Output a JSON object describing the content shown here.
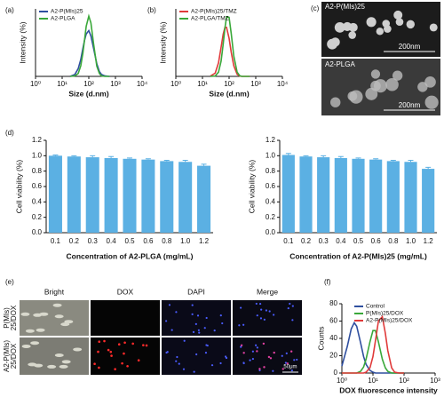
{
  "chart_data": [
    {
      "type": "line",
      "panel": "(a)",
      "x_label": "Size (d.nm)",
      "y_label": "Intensity (%)",
      "log_x": true,
      "legend": "upper left",
      "xlim": [
        1,
        10000
      ],
      "ylim": [
        0,
        14
      ],
      "xticks": [
        {
          "value": 1,
          "label": "10⁰"
        },
        {
          "value": 10,
          "label": "10¹"
        },
        {
          "value": 100,
          "label": "10²"
        },
        {
          "value": 1000,
          "label": "10³"
        },
        {
          "value": 10000,
          "label": "10⁴"
        }
      ],
      "x": [
        20,
        30,
        40,
        50,
        60,
        70,
        80,
        100,
        120,
        150,
        200,
        250,
        300,
        400,
        600
      ],
      "series": [
        {
          "name": "A2-P(MIs)25",
          "color": "#2f4f9f",
          "values": [
            0,
            0.4,
            1.6,
            3.5,
            5.8,
            7.6,
            8.8,
            9.5,
            8.4,
            5.9,
            2.6,
            1.0,
            0.4,
            0.1,
            0
          ]
        },
        {
          "name": "A2-PLGA",
          "color": "#3aa83a",
          "values": [
            0,
            0.1,
            0.6,
            2.2,
            4.8,
            7.8,
            10.4,
            12.5,
            11.1,
            6.9,
            2.1,
            0.6,
            0.1,
            0,
            0
          ]
        }
      ]
    },
    {
      "type": "line",
      "panel": "(b)",
      "x_label": "Size (d.nm)",
      "y_label": "Intensity (%)",
      "log_x": true,
      "legend": "upper left",
      "xlim": [
        1,
        10000
      ],
      "ylim": [
        0,
        19
      ],
      "xticks": [
        {
          "value": 1,
          "label": "10⁰"
        },
        {
          "value": 10,
          "label": "10¹"
        },
        {
          "value": 100,
          "label": "10²"
        },
        {
          "value": 1000,
          "label": "10³"
        },
        {
          "value": 10000,
          "label": "10⁴"
        }
      ],
      "x": [
        20,
        30,
        40,
        50,
        60,
        70,
        80,
        100,
        120,
        150,
        200,
        250,
        300,
        400,
        600
      ],
      "series": [
        {
          "name": "A2-P(MIs)25/TMZ",
          "color": "#e03a3a",
          "values": [
            0.1,
            0.9,
            3.8,
            8.2,
            11.9,
            13.8,
            13.8,
            10.7,
            6.8,
            3.0,
            0.6,
            0.1,
            0,
            0,
            0
          ]
        },
        {
          "name": "A2-PLGA/TMZ",
          "color": "#3aa83a",
          "values": [
            0,
            0.1,
            1.2,
            4.3,
            9.1,
            13.7,
            16.7,
            16.6,
            12.1,
            5.7,
            1.2,
            0.2,
            0,
            0,
            0
          ]
        }
      ]
    },
    {
      "type": "bar",
      "panel": "(d)",
      "x_label": "Concentration of  A2-PLGA (mg/mL)",
      "y_label": "Cell viability (%)",
      "color": "#5bb0e3",
      "categories": [
        "0.1",
        "0.2",
        "0.3",
        "0.4",
        "0.5",
        "0.6",
        "0.8",
        "1.0",
        "1.2"
      ],
      "values": [
        1.0,
        0.99,
        0.98,
        0.97,
        0.96,
        0.95,
        0.93,
        0.92,
        0.87
      ],
      "errors": [
        0.01,
        0.01,
        0.02,
        0.02,
        0.01,
        0.01,
        0.01,
        0.02,
        0.02
      ],
      "ylim": [
        0,
        1.2
      ],
      "yticks": [
        {
          "value": 0,
          "label": "0.0"
        },
        0.2,
        0.4,
        0.6,
        0.8,
        {
          "value": 1,
          "label": "1.0"
        },
        1.2
      ]
    },
    {
      "type": "bar",
      "x_label": "Concentration of A2-P(MIs)25 (mg/mL)",
      "y_label": "Cell viability (%)",
      "color": "#5bb0e3",
      "categories": [
        "0.1",
        "0.2",
        "0.3",
        "0.4",
        "0.5",
        "0.6",
        "0.8",
        "1.0",
        "1.2"
      ],
      "values": [
        1.01,
        0.99,
        0.98,
        0.97,
        0.96,
        0.95,
        0.93,
        0.92,
        0.83
      ],
      "errors": [
        0.02,
        0.01,
        0.02,
        0.02,
        0.01,
        0.01,
        0.01,
        0.02,
        0.02
      ],
      "ylim": [
        0,
        1.2
      ],
      "yticks": [
        {
          "value": 0,
          "label": "0.0"
        },
        0.2,
        0.4,
        0.6,
        0.8,
        {
          "value": 1,
          "label": "1.0"
        },
        1.2
      ]
    },
    {
      "type": "line",
      "panel": "(f)",
      "x_label": "DOX fluorescence intensity",
      "y_label": "Counts",
      "log_x": true,
      "legend": "upper left",
      "xlim": [
        1,
        1000
      ],
      "ylim": [
        0,
        80
      ],
      "xticks": [
        {
          "value": 1,
          "label": "10⁰"
        },
        {
          "value": 10,
          "label": "10¹"
        },
        {
          "value": 100,
          "label": "10²"
        },
        {
          "value": 1000,
          "label": "10³"
        }
      ],
      "yticks": [
        0,
        20,
        40,
        60,
        80
      ],
      "x": [
        1,
        1.5,
        2,
        2.5,
        3,
        4,
        5,
        6,
        8,
        10,
        12,
        15,
        20,
        25,
        30,
        40,
        50,
        70,
        100
      ],
      "series": [
        {
          "name": "Control",
          "color": "#2f4f9f",
          "values": [
            8,
            31,
            51,
            58,
            54,
            35,
            19,
            10,
            3,
            1,
            0,
            0,
            0,
            0,
            0,
            0,
            0,
            0,
            0
          ]
        },
        {
          "name": "P(MIs)25/DOX",
          "color": "#3aa83a",
          "values": [
            0,
            0,
            0,
            0,
            0,
            2,
            7,
            16,
            36,
            49,
            49,
            36,
            16,
            6,
            2,
            0,
            0,
            0,
            0
          ]
        },
        {
          "name": "A2-P(MIs)25/DOX",
          "color": "#e03a3a",
          "values": [
            0,
            0,
            0,
            0,
            0,
            0,
            0,
            1,
            6,
            19,
            37,
            60,
            65,
            46,
            26,
            6,
            1,
            0,
            0
          ]
        }
      ]
    }
  ],
  "images": {
    "panel": "(c)",
    "items": [
      {
        "label": "A2-P(MIs)25",
        "scale": "200nm"
      },
      {
        "label": "A2-PLGA",
        "scale": "200nm"
      }
    ]
  },
  "microscopy": {
    "panel": "(e)",
    "columns": [
      "Bright",
      "DOX",
      "DAPI",
      "Merge"
    ],
    "rows": [
      [
        "P(MIs)",
        "25/DOX"
      ],
      [
        "A2-P(MIs)",
        "25/DOX"
      ]
    ],
    "scale": "50μm"
  }
}
